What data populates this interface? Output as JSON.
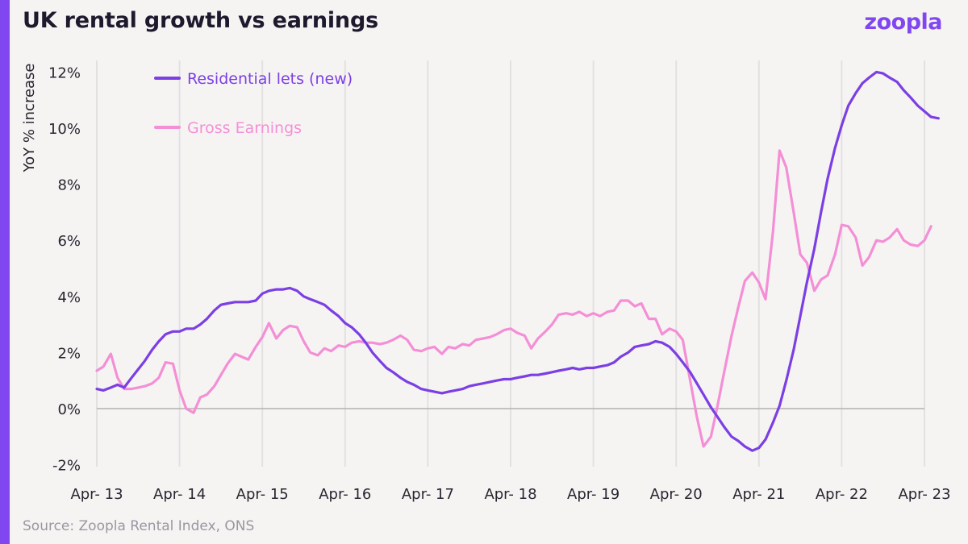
{
  "header": {
    "title": "UK rental growth vs earnings",
    "logo": "zoopla"
  },
  "footer": {
    "source": "Source: Zoopla Rental Index, ONS"
  },
  "colors": {
    "accent": "#8046f0",
    "rents": "#7b3fe4",
    "earnings": "#f48fd6"
  },
  "chart_data": {
    "type": "line",
    "ylabel": "YoY % increase",
    "ylim": [
      -2,
      12.5
    ],
    "yticks": [
      -2,
      0,
      2,
      4,
      6,
      8,
      10,
      12
    ],
    "ytick_labels": [
      "-2%",
      "0%",
      "2%",
      "4%",
      "6%",
      "8%",
      "10%",
      "12%"
    ],
    "xlim": [
      2013.25,
      2023.25
    ],
    "xticks": [
      2013.25,
      2014.25,
      2015.25,
      2016.25,
      2017.25,
      2018.25,
      2019.25,
      2020.25,
      2021.25,
      2022.25,
      2023.25
    ],
    "xtick_labels": [
      "Apr- 13",
      "Apr- 14",
      "Apr- 15",
      "Apr- 16",
      "Apr- 17",
      "Apr- 18",
      "Apr- 19",
      "Apr- 20",
      "Apr- 21",
      "Apr- 22",
      "Apr- 23"
    ],
    "grid": "vertical",
    "legend": "top-left",
    "series": [
      {
        "name": "Residential lets (new)",
        "color": "#7b3fe4",
        "points": [
          [
            2013.25,
            0.7
          ],
          [
            2013.33,
            0.65
          ],
          [
            2013.42,
            0.75
          ],
          [
            2013.5,
            0.85
          ],
          [
            2013.58,
            0.75
          ],
          [
            2013.67,
            1.1
          ],
          [
            2013.75,
            1.4
          ],
          [
            2013.83,
            1.7
          ],
          [
            2013.92,
            2.1
          ],
          [
            2014.0,
            2.4
          ],
          [
            2014.08,
            2.65
          ],
          [
            2014.17,
            2.75
          ],
          [
            2014.25,
            2.75
          ],
          [
            2014.33,
            2.85
          ],
          [
            2014.42,
            2.85
          ],
          [
            2014.5,
            3.0
          ],
          [
            2014.58,
            3.2
          ],
          [
            2014.67,
            3.5
          ],
          [
            2014.75,
            3.7
          ],
          [
            2014.83,
            3.75
          ],
          [
            2014.92,
            3.8
          ],
          [
            2015.0,
            3.8
          ],
          [
            2015.08,
            3.8
          ],
          [
            2015.17,
            3.85
          ],
          [
            2015.25,
            4.1
          ],
          [
            2015.33,
            4.2
          ],
          [
            2015.42,
            4.25
          ],
          [
            2015.5,
            4.25
          ],
          [
            2015.58,
            4.3
          ],
          [
            2015.67,
            4.2
          ],
          [
            2015.75,
            4.0
          ],
          [
            2015.83,
            3.9
          ],
          [
            2015.92,
            3.8
          ],
          [
            2016.0,
            3.7
          ],
          [
            2016.08,
            3.5
          ],
          [
            2016.17,
            3.3
          ],
          [
            2016.25,
            3.05
          ],
          [
            2016.33,
            2.9
          ],
          [
            2016.42,
            2.65
          ],
          [
            2016.5,
            2.35
          ],
          [
            2016.58,
            2.0
          ],
          [
            2016.67,
            1.7
          ],
          [
            2016.75,
            1.45
          ],
          [
            2016.83,
            1.3
          ],
          [
            2016.92,
            1.1
          ],
          [
            2017.0,
            0.95
          ],
          [
            2017.08,
            0.85
          ],
          [
            2017.17,
            0.7
          ],
          [
            2017.25,
            0.65
          ],
          [
            2017.33,
            0.6
          ],
          [
            2017.42,
            0.55
          ],
          [
            2017.5,
            0.6
          ],
          [
            2017.58,
            0.65
          ],
          [
            2017.67,
            0.7
          ],
          [
            2017.75,
            0.8
          ],
          [
            2017.83,
            0.85
          ],
          [
            2017.92,
            0.9
          ],
          [
            2018.0,
            0.95
          ],
          [
            2018.08,
            1.0
          ],
          [
            2018.17,
            1.05
          ],
          [
            2018.25,
            1.05
          ],
          [
            2018.33,
            1.1
          ],
          [
            2018.42,
            1.15
          ],
          [
            2018.5,
            1.2
          ],
          [
            2018.58,
            1.2
          ],
          [
            2018.67,
            1.25
          ],
          [
            2018.75,
            1.3
          ],
          [
            2018.83,
            1.35
          ],
          [
            2018.92,
            1.4
          ],
          [
            2019.0,
            1.45
          ],
          [
            2019.08,
            1.4
          ],
          [
            2019.17,
            1.45
          ],
          [
            2019.25,
            1.45
          ],
          [
            2019.33,
            1.5
          ],
          [
            2019.42,
            1.55
          ],
          [
            2019.5,
            1.65
          ],
          [
            2019.58,
            1.85
          ],
          [
            2019.67,
            2.0
          ],
          [
            2019.75,
            2.2
          ],
          [
            2019.83,
            2.25
          ],
          [
            2019.92,
            2.3
          ],
          [
            2020.0,
            2.4
          ],
          [
            2020.08,
            2.35
          ],
          [
            2020.17,
            2.2
          ],
          [
            2020.25,
            1.95
          ],
          [
            2020.33,
            1.65
          ],
          [
            2020.42,
            1.3
          ],
          [
            2020.5,
            0.9
          ],
          [
            2020.58,
            0.5
          ],
          [
            2020.67,
            0.05
          ],
          [
            2020.75,
            -0.3
          ],
          [
            2020.83,
            -0.65
          ],
          [
            2020.92,
            -1.0
          ],
          [
            2021.0,
            -1.15
          ],
          [
            2021.08,
            -1.35
          ],
          [
            2021.17,
            -1.5
          ],
          [
            2021.25,
            -1.4
          ],
          [
            2021.33,
            -1.1
          ],
          [
            2021.42,
            -0.5
          ],
          [
            2021.5,
            0.1
          ],
          [
            2021.58,
            1.0
          ],
          [
            2021.67,
            2.1
          ],
          [
            2021.75,
            3.3
          ],
          [
            2021.83,
            4.5
          ],
          [
            2021.92,
            5.7
          ],
          [
            2022.0,
            7.0
          ],
          [
            2022.08,
            8.2
          ],
          [
            2022.17,
            9.3
          ],
          [
            2022.25,
            10.1
          ],
          [
            2022.33,
            10.8
          ],
          [
            2022.42,
            11.25
          ],
          [
            2022.5,
            11.6
          ],
          [
            2022.58,
            11.8
          ],
          [
            2022.67,
            12.0
          ],
          [
            2022.75,
            11.95
          ],
          [
            2022.83,
            11.8
          ],
          [
            2022.92,
            11.65
          ],
          [
            2023.0,
            11.35
          ],
          [
            2023.08,
            11.1
          ],
          [
            2023.17,
            10.8
          ],
          [
            2023.25,
            10.6
          ],
          [
            2023.33,
            10.4
          ],
          [
            2023.42,
            10.35
          ]
        ]
      },
      {
        "name": "Gross Earnings",
        "color": "#f48fd6",
        "points": [
          [
            2013.25,
            1.35
          ],
          [
            2013.33,
            1.5
          ],
          [
            2013.42,
            1.95
          ],
          [
            2013.5,
            1.1
          ],
          [
            2013.58,
            0.7
          ],
          [
            2013.67,
            0.7
          ],
          [
            2013.75,
            0.75
          ],
          [
            2013.83,
            0.8
          ],
          [
            2013.92,
            0.9
          ],
          [
            2014.0,
            1.1
          ],
          [
            2014.08,
            1.65
          ],
          [
            2014.17,
            1.6
          ],
          [
            2014.25,
            0.65
          ],
          [
            2014.33,
            0.0
          ],
          [
            2014.42,
            -0.15
          ],
          [
            2014.5,
            0.4
          ],
          [
            2014.58,
            0.5
          ],
          [
            2014.67,
            0.8
          ],
          [
            2014.75,
            1.2
          ],
          [
            2014.83,
            1.6
          ],
          [
            2014.92,
            1.95
          ],
          [
            2015.0,
            1.85
          ],
          [
            2015.08,
            1.75
          ],
          [
            2015.17,
            2.2
          ],
          [
            2015.25,
            2.55
          ],
          [
            2015.33,
            3.05
          ],
          [
            2015.42,
            2.5
          ],
          [
            2015.5,
            2.8
          ],
          [
            2015.58,
            2.95
          ],
          [
            2015.67,
            2.9
          ],
          [
            2015.75,
            2.4
          ],
          [
            2015.83,
            2.0
          ],
          [
            2015.92,
            1.9
          ],
          [
            2016.0,
            2.15
          ],
          [
            2016.08,
            2.05
          ],
          [
            2016.17,
            2.25
          ],
          [
            2016.25,
            2.2
          ],
          [
            2016.33,
            2.35
          ],
          [
            2016.42,
            2.4
          ],
          [
            2016.5,
            2.35
          ],
          [
            2016.58,
            2.35
          ],
          [
            2016.67,
            2.3
          ],
          [
            2016.75,
            2.35
          ],
          [
            2016.83,
            2.45
          ],
          [
            2016.92,
            2.6
          ],
          [
            2017.0,
            2.45
          ],
          [
            2017.08,
            2.1
          ],
          [
            2017.17,
            2.05
          ],
          [
            2017.25,
            2.15
          ],
          [
            2017.33,
            2.2
          ],
          [
            2017.42,
            1.95
          ],
          [
            2017.5,
            2.2
          ],
          [
            2017.58,
            2.15
          ],
          [
            2017.67,
            2.3
          ],
          [
            2017.75,
            2.25
          ],
          [
            2017.83,
            2.45
          ],
          [
            2017.92,
            2.5
          ],
          [
            2018.0,
            2.55
          ],
          [
            2018.08,
            2.65
          ],
          [
            2018.17,
            2.8
          ],
          [
            2018.25,
            2.85
          ],
          [
            2018.33,
            2.7
          ],
          [
            2018.42,
            2.6
          ],
          [
            2018.5,
            2.15
          ],
          [
            2018.58,
            2.5
          ],
          [
            2018.67,
            2.75
          ],
          [
            2018.75,
            3.0
          ],
          [
            2018.83,
            3.35
          ],
          [
            2018.92,
            3.4
          ],
          [
            2019.0,
            3.35
          ],
          [
            2019.08,
            3.45
          ],
          [
            2019.17,
            3.3
          ],
          [
            2019.25,
            3.4
          ],
          [
            2019.33,
            3.3
          ],
          [
            2019.42,
            3.45
          ],
          [
            2019.5,
            3.5
          ],
          [
            2019.58,
            3.85
          ],
          [
            2019.67,
            3.85
          ],
          [
            2019.75,
            3.65
          ],
          [
            2019.83,
            3.75
          ],
          [
            2019.92,
            3.2
          ],
          [
            2020.0,
            3.2
          ],
          [
            2020.08,
            2.65
          ],
          [
            2020.17,
            2.85
          ],
          [
            2020.25,
            2.75
          ],
          [
            2020.33,
            2.45
          ],
          [
            2020.42,
            1.0
          ],
          [
            2020.5,
            -0.3
          ],
          [
            2020.58,
            -1.35
          ],
          [
            2020.67,
            -1.0
          ],
          [
            2020.75,
            0.1
          ],
          [
            2020.83,
            1.3
          ],
          [
            2020.92,
            2.6
          ],
          [
            2021.0,
            3.6
          ],
          [
            2021.08,
            4.55
          ],
          [
            2021.17,
            4.85
          ],
          [
            2021.25,
            4.5
          ],
          [
            2021.33,
            3.9
          ],
          [
            2021.42,
            6.3
          ],
          [
            2021.5,
            9.2
          ],
          [
            2021.58,
            8.6
          ],
          [
            2021.67,
            7.0
          ],
          [
            2021.75,
            5.5
          ],
          [
            2021.83,
            5.2
          ],
          [
            2021.92,
            4.2
          ],
          [
            2022.0,
            4.6
          ],
          [
            2022.08,
            4.75
          ],
          [
            2022.17,
            5.5
          ],
          [
            2022.25,
            6.55
          ],
          [
            2022.33,
            6.5
          ],
          [
            2022.42,
            6.1
          ],
          [
            2022.5,
            5.1
          ],
          [
            2022.58,
            5.4
          ],
          [
            2022.67,
            6.0
          ],
          [
            2022.75,
            5.95
          ],
          [
            2022.83,
            6.1
          ],
          [
            2022.92,
            6.4
          ],
          [
            2023.0,
            6.0
          ],
          [
            2023.08,
            5.85
          ],
          [
            2023.17,
            5.8
          ],
          [
            2023.25,
            6.0
          ],
          [
            2023.33,
            6.5
          ]
        ]
      }
    ]
  }
}
